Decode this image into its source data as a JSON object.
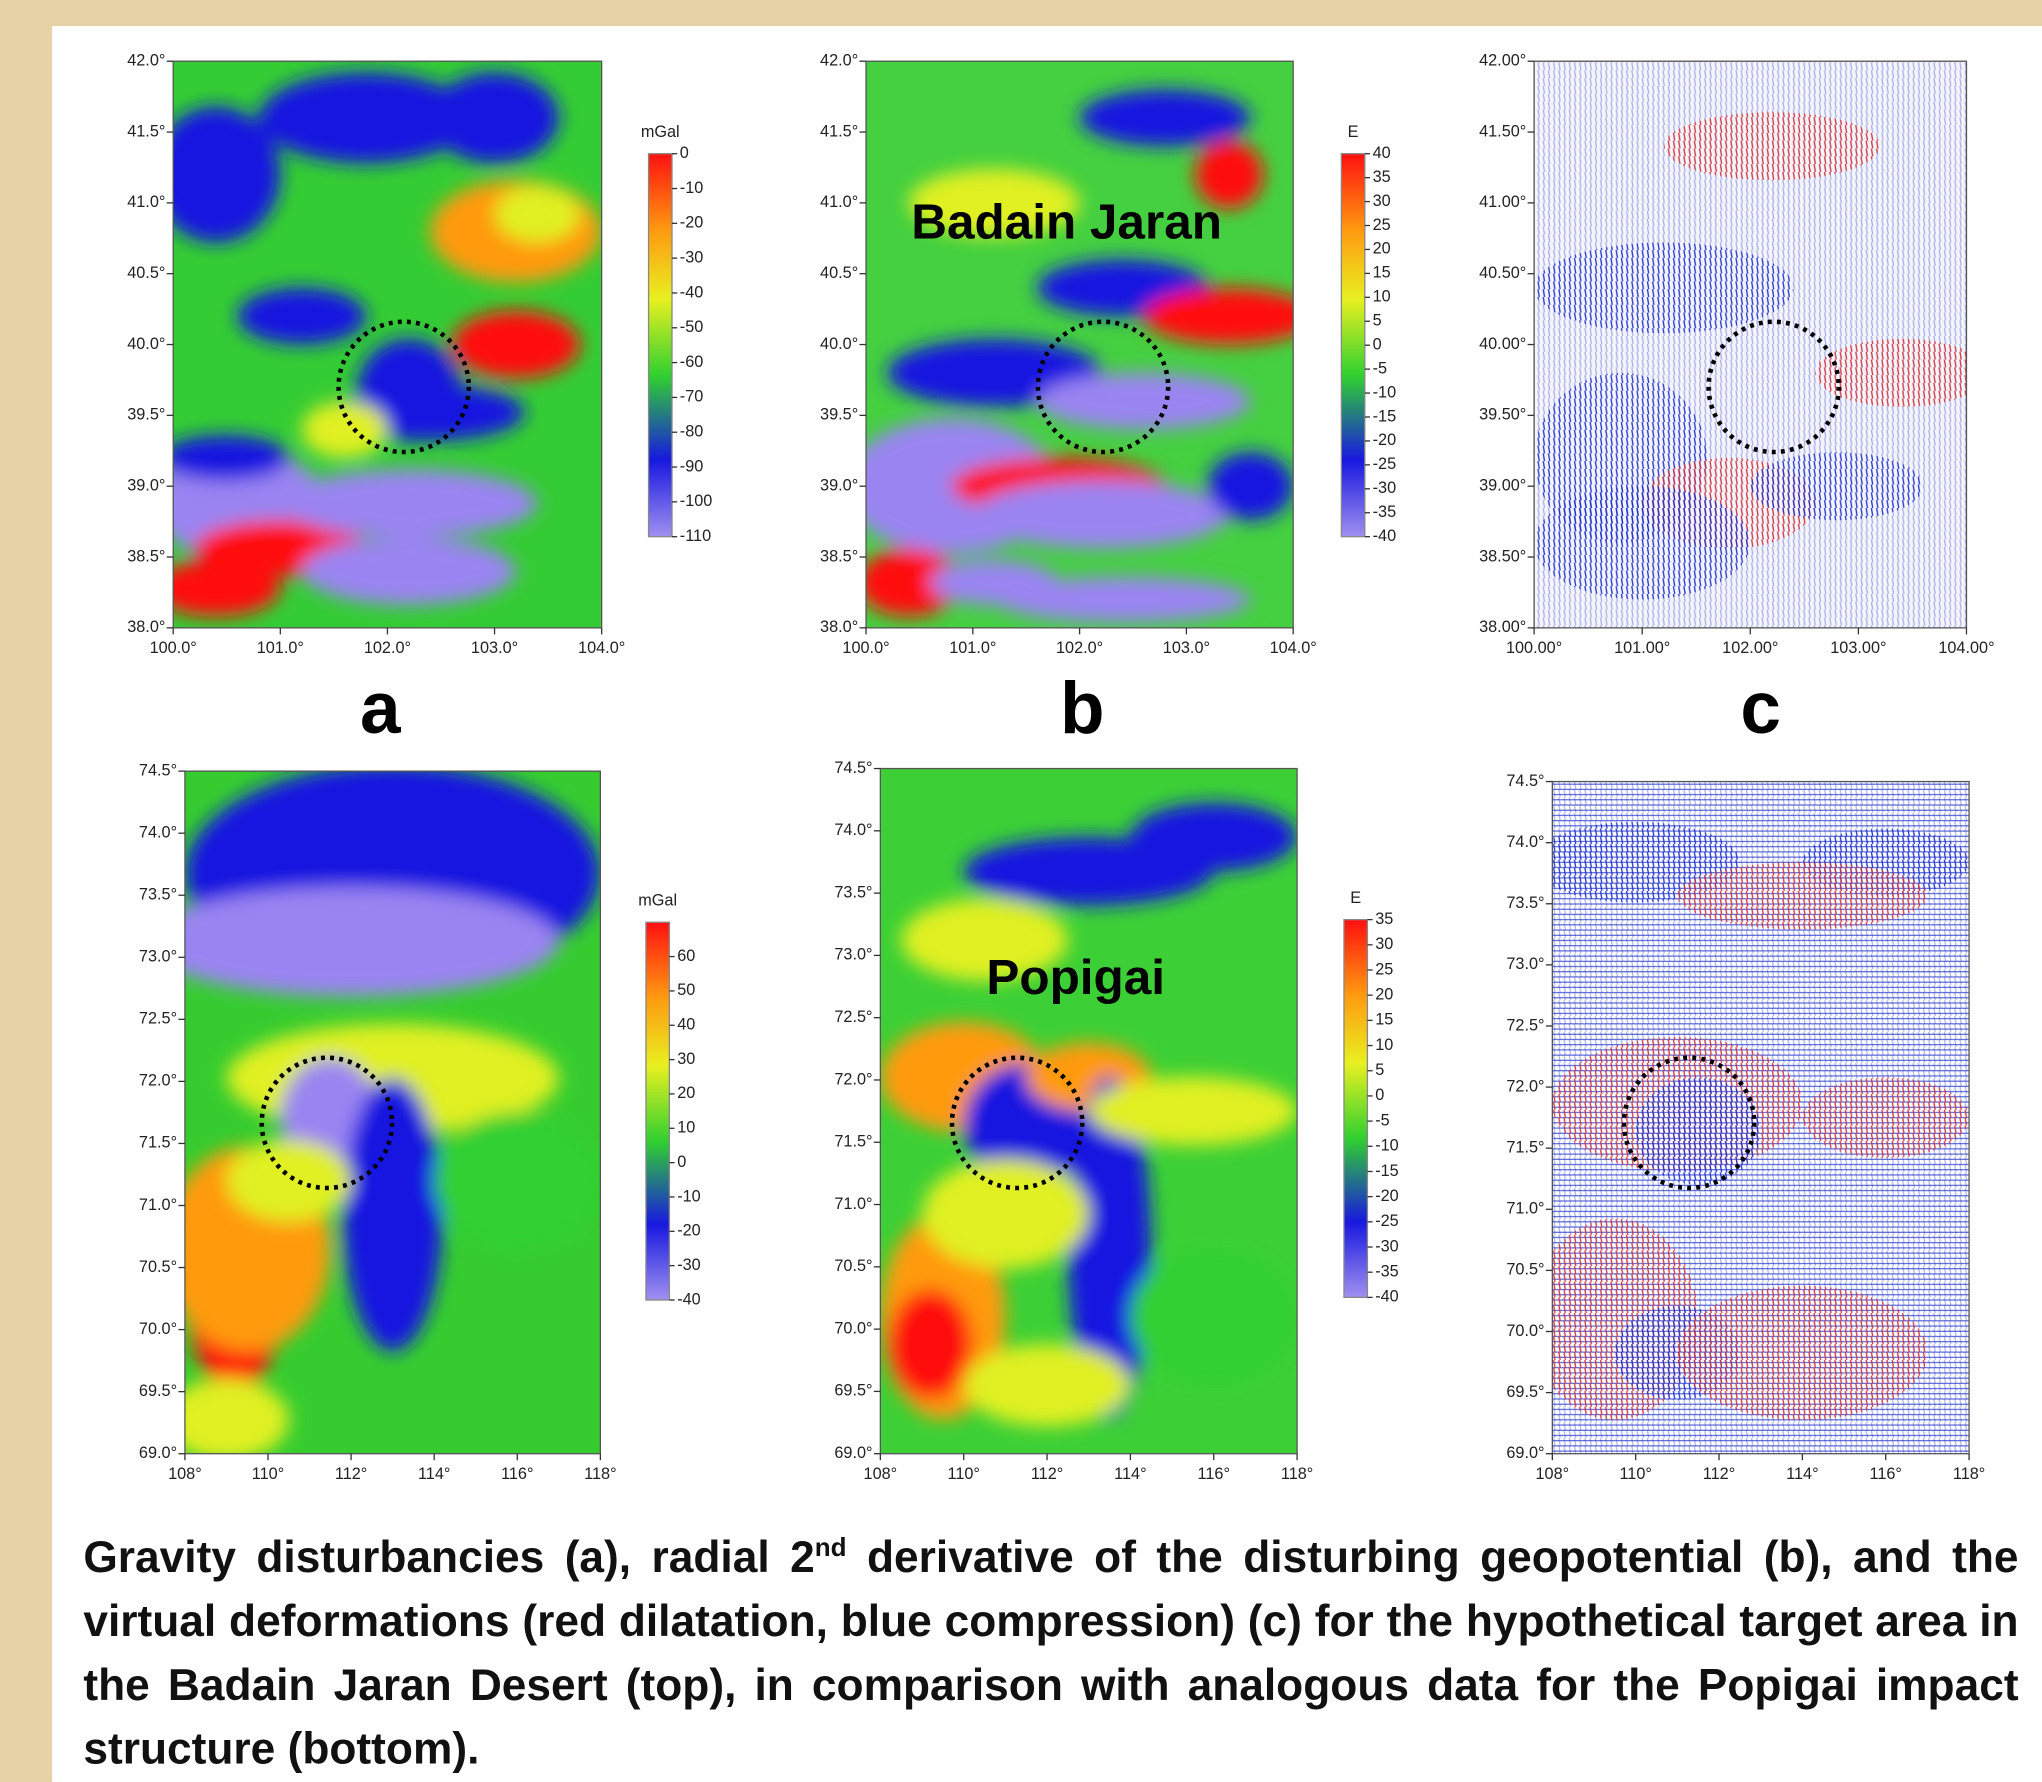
{
  "panels": [
    {
      "x_ticks": [
        "100.0°",
        "101.0°",
        "102.0°",
        "103.0°",
        "104.0°"
      ],
      "y_ticks": [
        "42.0°",
        "41.5°",
        "41.0°",
        "40.5°",
        "40.0°",
        "39.5°",
        "39.0°",
        "38.5°",
        "38.0°"
      ]
    },
    {
      "x_ticks": [
        "100.0°",
        "101.0°",
        "102.0°",
        "103.0°",
        "104.0°"
      ],
      "y_ticks": [
        "42.0°",
        "41.5°",
        "41.0°",
        "40.5°",
        "40.0°",
        "39.5°",
        "39.0°",
        "38.5°",
        "38.0°"
      ],
      "annotation": "Badain Jaran"
    },
    {
      "x_ticks": [
        "100.00°",
        "101.00°",
        "102.00°",
        "103.00°",
        "104.00°"
      ],
      "y_ticks": [
        "42.00°",
        "41.50°",
        "41.00°",
        "40.50°",
        "40.00°",
        "39.50°",
        "39.00°",
        "38.50°",
        "38.00°"
      ]
    },
    {
      "x_ticks": [
        "108°",
        "110°",
        "112°",
        "114°",
        "116°",
        "118°"
      ],
      "y_ticks": [
        "74.5°",
        "74.0°",
        "73.5°",
        "73.0°",
        "72.5°",
        "72.0°",
        "71.5°",
        "71.0°",
        "70.5°",
        "70.0°",
        "69.5°",
        "69.0°"
      ]
    },
    {
      "x_ticks": [
        "108°",
        "110°",
        "112°",
        "114°",
        "116°",
        "118°"
      ],
      "y_ticks": [
        "74.5°",
        "74.0°",
        "73.5°",
        "73.0°",
        "72.5°",
        "72.0°",
        "71.5°",
        "71.0°",
        "70.5°",
        "70.0°",
        "69.5°",
        "69.0°"
      ],
      "annotation": "Popigai"
    },
    {
      "x_ticks": [
        "108°",
        "110°",
        "112°",
        "114°",
        "116°",
        "118°"
      ],
      "y_ticks": [
        "74.5°",
        "74.0°",
        "73.5°",
        "73.0°",
        "72.5°",
        "72.0°",
        "71.5°",
        "71.0°",
        "70.5°",
        "70.0°",
        "69.5°",
        "69.0°"
      ]
    }
  ],
  "colorbars": [
    {
      "unit": "mGal",
      "range": [
        -110,
        0
      ],
      "ticks": [
        0,
        -10,
        -20,
        -30,
        -40,
        -50,
        -60,
        -70,
        -80,
        -90,
        -100,
        -110
      ]
    },
    {
      "unit": "E",
      "range": [
        -40,
        40
      ],
      "ticks": [
        40,
        35,
        30,
        25,
        20,
        15,
        10,
        5,
        0,
        -5,
        -10,
        -15,
        -20,
        -25,
        -30,
        -35,
        -40
      ]
    },
    {
      "unit": "mGal",
      "range": [
        -40,
        70
      ],
      "ticks": [
        60,
        50,
        40,
        30,
        20,
        10,
        0,
        -10,
        -20,
        -30,
        -40
      ]
    },
    {
      "unit": "E",
      "range": [
        -40,
        35
      ],
      "ticks": [
        35,
        30,
        25,
        20,
        15,
        10,
        5,
        0,
        -5,
        -10,
        -15,
        -20,
        -25,
        -30,
        -35,
        -40
      ]
    }
  ],
  "letters": [
    "a",
    "b",
    "c"
  ],
  "caption": {
    "before": "Gravity disturbancies (a), radial 2",
    "sup": "nd",
    "after": " derivative of the disturbing geopotential (b), and the virtual deformations (red dilatation, blue compression) (c) for the hypothetical target area in the Badain Jaran Desert (top), in comparison with analogous data for the Popigai impact structure (bottom)."
  }
}
